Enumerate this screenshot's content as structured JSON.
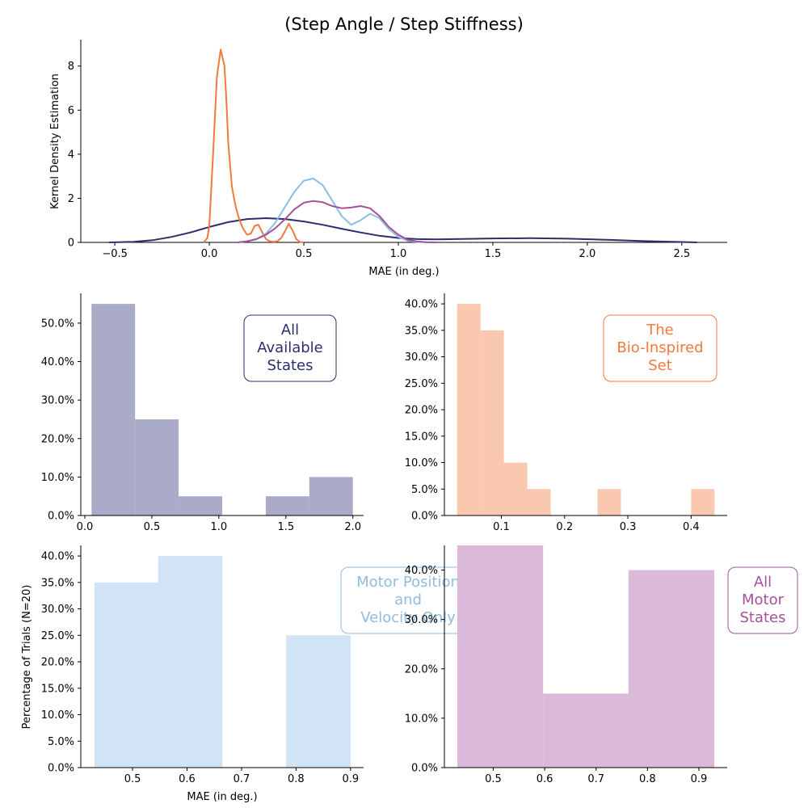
{
  "figure": {
    "title": "(Step Angle / Step Stiffness)",
    "xlabel": "MAE (in deg.)",
    "ylabel_left": "Percentage of Trials (N=20)"
  },
  "colors": {
    "all_available": "#2b2f6e",
    "bio_inspired": "#f07a3d",
    "motor_pos_vel": "#8fbde0",
    "all_motor": "#a5519c",
    "hist_all_available": "#a9abc8",
    "hist_bio_inspired": "#f9c8af",
    "hist_motor_pos_vel": "#d1e4f5",
    "hist_all_motor": "#dbb9d8"
  },
  "chart_data": [
    {
      "id": "kde",
      "type": "line",
      "title": "(Step Angle / Step Stiffness)",
      "xlabel": "MAE (in deg.)",
      "ylabel": "Kernel Density Estimation",
      "xlim": [
        -0.68,
        2.74
      ],
      "ylim": [
        0,
        9.2
      ],
      "xticks": [
        -0.5,
        0.0,
        0.5,
        1.0,
        1.5,
        2.0,
        2.5
      ],
      "xtick_labels": [
        "−0.5",
        "0.0",
        "0.5",
        "1.0",
        "1.5",
        "2.0",
        "2.5"
      ],
      "yticks": [
        0,
        2,
        4,
        6,
        8
      ],
      "ytick_labels": [
        "0",
        "2",
        "4",
        "6",
        "8"
      ],
      "series": [
        {
          "color_key": "all_available",
          "x": [
            -0.53,
            -0.4,
            -0.3,
            -0.2,
            -0.1,
            0.0,
            0.1,
            0.2,
            0.3,
            0.4,
            0.5,
            0.6,
            0.7,
            0.8,
            0.9,
            1.0,
            1.1,
            1.2,
            1.3,
            1.5,
            1.7,
            1.9,
            2.1,
            2.3,
            2.5,
            2.58
          ],
          "y": [
            0.0,
            0.03,
            0.1,
            0.25,
            0.45,
            0.7,
            0.92,
            1.06,
            1.1,
            1.06,
            0.95,
            0.8,
            0.62,
            0.45,
            0.3,
            0.2,
            0.15,
            0.14,
            0.15,
            0.18,
            0.19,
            0.17,
            0.12,
            0.06,
            0.02,
            0.0
          ]
        },
        {
          "color_key": "bio_inspired",
          "x": [
            -0.03,
            -0.01,
            0.0,
            0.02,
            0.04,
            0.06,
            0.08,
            0.09,
            0.1,
            0.12,
            0.14,
            0.16,
            0.18,
            0.2,
            0.22,
            0.24,
            0.26,
            0.28,
            0.3,
            0.32,
            0.34,
            0.36,
            0.38,
            0.4,
            0.42,
            0.44,
            0.46,
            0.48,
            0.5
          ],
          "y": [
            0.0,
            0.2,
            0.8,
            4.0,
            7.5,
            8.75,
            8.0,
            6.5,
            4.5,
            2.5,
            1.6,
            1.0,
            0.6,
            0.35,
            0.4,
            0.75,
            0.8,
            0.45,
            0.15,
            0.05,
            0.03,
            0.05,
            0.2,
            0.5,
            0.85,
            0.55,
            0.15,
            0.02,
            0.0
          ]
        },
        {
          "color_key": "motor_pos_vel",
          "x": [
            0.15,
            0.2,
            0.25,
            0.3,
            0.35,
            0.4,
            0.45,
            0.5,
            0.55,
            0.6,
            0.65,
            0.7,
            0.75,
            0.8,
            0.85,
            0.9,
            0.95,
            1.0,
            1.05,
            1.1,
            1.15,
            1.2
          ],
          "y": [
            0.0,
            0.05,
            0.15,
            0.4,
            0.9,
            1.6,
            2.3,
            2.8,
            2.9,
            2.6,
            1.9,
            1.2,
            0.8,
            1.0,
            1.3,
            1.1,
            0.6,
            0.25,
            0.07,
            0.02,
            0.01,
            0.0
          ]
        },
        {
          "color_key": "all_motor",
          "x": [
            0.15,
            0.2,
            0.25,
            0.3,
            0.35,
            0.4,
            0.45,
            0.5,
            0.55,
            0.6,
            0.65,
            0.7,
            0.75,
            0.8,
            0.85,
            0.9,
            0.95,
            1.0,
            1.05,
            1.1,
            1.15,
            1.2
          ],
          "y": [
            0.0,
            0.05,
            0.15,
            0.35,
            0.65,
            1.05,
            1.5,
            1.8,
            1.88,
            1.82,
            1.65,
            1.55,
            1.58,
            1.65,
            1.55,
            1.2,
            0.7,
            0.35,
            0.12,
            0.04,
            0.01,
            0.0
          ]
        }
      ]
    },
    {
      "id": "hist_all_available",
      "type": "bar",
      "label": "All\nAvailable\nStates",
      "label_color_key": "all_available",
      "fill_color_key": "hist_all_available",
      "bin_edges": [
        0.05,
        0.375,
        0.7,
        1.025,
        1.35,
        1.675,
        2.0
      ],
      "values": [
        55,
        25,
        5,
        0,
        5,
        10
      ],
      "xlim": [
        -0.03,
        2.08
      ],
      "ylim": [
        0,
        57.75
      ],
      "xticks": [
        0.0,
        0.5,
        1.0,
        1.5,
        2.0
      ],
      "xtick_labels": [
        "0.0",
        "0.5",
        "1.0",
        "1.5",
        "2.0"
      ],
      "yticks": [
        0,
        10,
        20,
        30,
        40,
        50
      ],
      "ytick_labels": [
        "0.0%",
        "10.0%",
        "20.0%",
        "30.0%",
        "40.0%",
        "50.0%"
      ]
    },
    {
      "id": "hist_bio_inspired",
      "type": "bar",
      "label": "The\nBio-Inspired\nSet",
      "label_color_key": "bio_inspired",
      "fill_color_key": "hist_bio_inspired",
      "bin_edges": [
        0.03,
        0.067,
        0.104,
        0.141,
        0.178,
        0.215,
        0.252,
        0.289,
        0.326,
        0.363,
        0.4,
        0.437
      ],
      "values": [
        40,
        35,
        10,
        5,
        0,
        0,
        5,
        0,
        0,
        0,
        5
      ],
      "xlim": [
        0.01,
        0.457
      ],
      "ylim": [
        0,
        42
      ],
      "xticks": [
        0.1,
        0.2,
        0.3,
        0.4
      ],
      "xtick_labels": [
        "0.1",
        "0.2",
        "0.3",
        "0.4"
      ],
      "yticks": [
        0,
        5,
        10,
        15,
        20,
        25,
        30,
        35,
        40
      ],
      "ytick_labels": [
        "0.0%",
        "5.0%",
        "10.0%",
        "15.0%",
        "20.0%",
        "25.0%",
        "30.0%",
        "35.0%",
        "40.0%"
      ]
    },
    {
      "id": "hist_motor_pos_vel",
      "type": "bar",
      "label": "Motor Position\nand\nVelocity Only",
      "label_color_key": "motor_pos_vel",
      "fill_color_key": "hist_motor_pos_vel",
      "bin_edges": [
        0.43,
        0.547,
        0.665,
        0.782,
        0.9
      ],
      "values": [
        35,
        40,
        0,
        25
      ],
      "xlim": [
        0.405,
        0.924
      ],
      "ylim": [
        0,
        42
      ],
      "xticks": [
        0.5,
        0.6,
        0.7,
        0.8,
        0.9
      ],
      "xtick_labels": [
        "0.5",
        "0.6",
        "0.7",
        "0.8",
        "0.9"
      ],
      "yticks": [
        0,
        5,
        10,
        15,
        20,
        25,
        30,
        35,
        40
      ],
      "ytick_labels": [
        "0.0%",
        "5.0%",
        "10.0%",
        "15.0%",
        "20.0%",
        "25.0%",
        "30.0%",
        "35.0%",
        "40.0%"
      ],
      "xlabel": "MAE (in deg.)",
      "ylabel": "Percentage of Trials (N=20)"
    },
    {
      "id": "hist_all_motor",
      "type": "bar",
      "label": "All\nMotor\nStates",
      "label_color_key": "all_motor",
      "fill_color_key": "hist_all_motor",
      "bin_edges": [
        0.43,
        0.597,
        0.763,
        0.93
      ],
      "values": [
        45,
        15,
        40
      ],
      "xlim": [
        0.405,
        0.955
      ],
      "ylim": [
        0,
        45
      ],
      "xticks": [
        0.5,
        0.6,
        0.7,
        0.8,
        0.9
      ],
      "xtick_labels": [
        "0.5",
        "0.6",
        "0.7",
        "0.8",
        "0.9"
      ],
      "yticks": [
        0,
        10,
        30,
        40
      ],
      "ytick_labels": [
        "0.0%",
        "10.0%",
        "30.0%",
        "40.0%"
      ],
      "extra_ytick": {
        "value": 20,
        "label": "20.0%"
      }
    }
  ]
}
